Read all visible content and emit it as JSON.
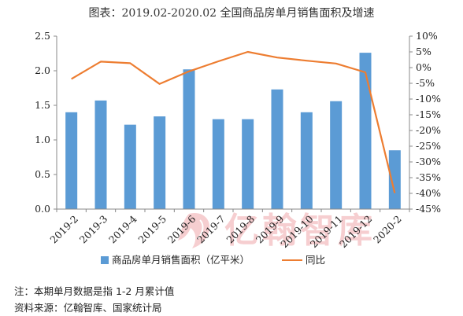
{
  "chart_data": {
    "type": "bar",
    "title": "图表：2019.02-2020.02 全国商品房单月销售面积及增速",
    "categories": [
      "2019-2",
      "2019-3",
      "2019-4",
      "2019-5",
      "2019-6",
      "2019-7",
      "2019-8",
      "2019-9",
      "2019-10",
      "2019-11",
      "2019-12",
      "2020-2"
    ],
    "series": [
      {
        "name": "商品房单月销售面积（亿平米）",
        "type": "bar",
        "axis": "left",
        "color": "#5b9bd5",
        "values": [
          1.4,
          1.57,
          1.22,
          1.34,
          2.02,
          1.3,
          1.3,
          1.73,
          1.4,
          1.56,
          2.26,
          0.85
        ]
      },
      {
        "name": "同比",
        "type": "line",
        "axis": "right",
        "unit": "%",
        "color": "#ed7d31",
        "values": [
          -3.6,
          1.9,
          1.4,
          -5.2,
          -1.2,
          2.0,
          5.0,
          3.2,
          2.2,
          1.3,
          -1.5,
          -39.9
        ]
      }
    ],
    "y_left": {
      "ylim": [
        0,
        2.5
      ],
      "ticks": [
        "0.0",
        "0.5",
        "1.0",
        "1.5",
        "2.0",
        "2.5"
      ]
    },
    "y_right": {
      "ylim": [
        -45,
        10
      ],
      "ticks": [
        "10%",
        "5%",
        "0%",
        "-5%",
        "-10%",
        "-15%",
        "-20%",
        "-25%",
        "-30%",
        "-35%",
        "-40%",
        "-45%"
      ]
    },
    "legend_position": "bottom",
    "grid": false
  },
  "notes": {
    "note1": "注：本期单月数据是指 1-2 月累计值",
    "note2": "资料来源：亿翰智库、国家统计局"
  },
  "watermark": {
    "text": "亿翰智库"
  }
}
